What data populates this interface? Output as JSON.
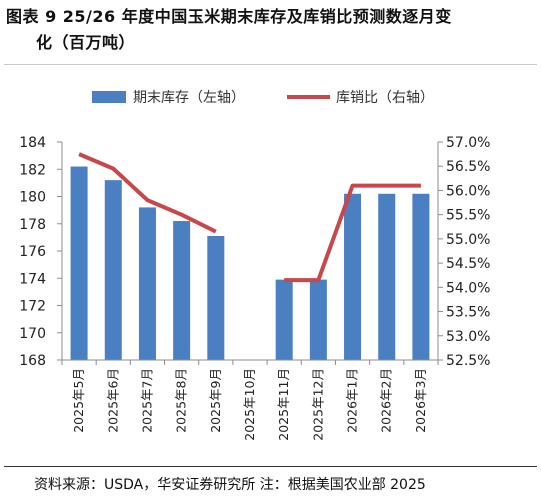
{
  "title": {
    "line1": "图表 9 25/26 年度中国玉米期末库存及库销比预测数逐月变",
    "line2": "化（百万吨）"
  },
  "source": "资料来源：USDA，华安证券研究所 注：根据美国农业部 2025",
  "colors": {
    "bar": "#4a7fc1",
    "line": "#c8474a"
  },
  "chart_data": {
    "type": "bar",
    "categories": [
      "2025年5月",
      "2025年6月",
      "2025年7月",
      "2025年8月",
      "2025年9月",
      "2025年10月",
      "2025年11月",
      "2025年12月",
      "2026年1月",
      "2026年2月",
      "2026年3月"
    ],
    "series": [
      {
        "name": "期末库存（左轴）",
        "type": "bar",
        "axis": "left",
        "values": [
          182.2,
          181.2,
          179.2,
          178.2,
          177.1,
          null,
          173.9,
          173.9,
          180.2,
          180.2,
          180.2
        ]
      },
      {
        "name": "库销比（右轴）",
        "type": "line",
        "axis": "right",
        "values": [
          56.75,
          56.45,
          55.8,
          55.5,
          55.15,
          null,
          54.15,
          54.15,
          56.1,
          56.1,
          56.1
        ]
      }
    ],
    "y_left": {
      "min": 168,
      "max": 184,
      "step": 2,
      "ticks": [
        "168",
        "170",
        "172",
        "174",
        "176",
        "178",
        "180",
        "182",
        "184"
      ]
    },
    "y_right": {
      "min": 52.5,
      "max": 57.0,
      "step": 0.5,
      "ticks": [
        "52.5%",
        "53.0%",
        "53.5%",
        "54.0%",
        "54.5%",
        "55.0%",
        "55.5%",
        "56.0%",
        "56.5%",
        "57.0%"
      ]
    },
    "legend_position": "top",
    "grid": false
  }
}
